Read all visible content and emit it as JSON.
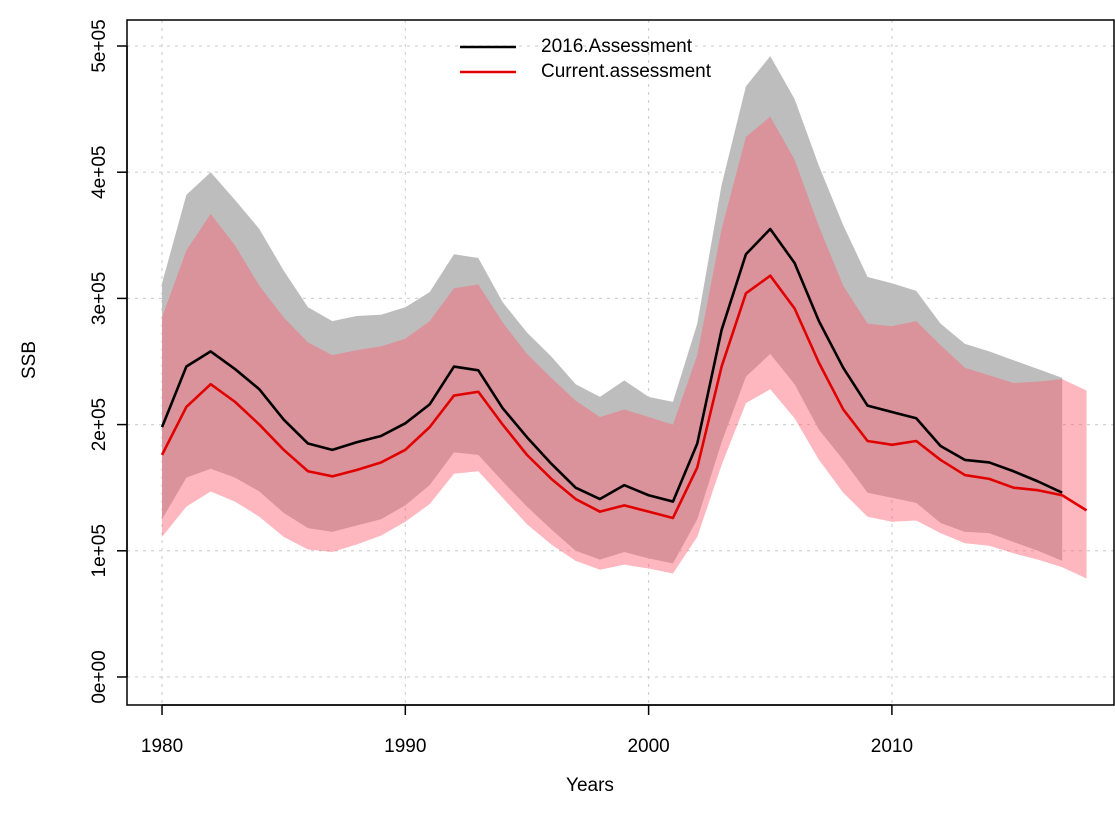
{
  "chart_data": {
    "type": "line",
    "xlabel": "Years",
    "ylabel": "SSB",
    "x": [
      1980,
      1981,
      1982,
      1983,
      1984,
      1985,
      1986,
      1987,
      1988,
      1989,
      1990,
      1991,
      1992,
      1993,
      1994,
      1995,
      1996,
      1997,
      1998,
      1999,
      2000,
      2001,
      2002,
      2003,
      2004,
      2005,
      2006,
      2007,
      2008,
      2009,
      2010,
      2011,
      2012,
      2013,
      2014,
      2015,
      2016,
      2017,
      2018
    ],
    "series": [
      {
        "name": "2016.Assessment",
        "color": "#000000",
        "band_color": "#bdbdbd",
        "values": [
          198000,
          246000,
          258000,
          244000,
          228000,
          204000,
          185000,
          180000,
          186000,
          191000,
          201000,
          216000,
          246000,
          243000,
          213000,
          190000,
          169000,
          150000,
          141000,
          152000,
          144000,
          139000,
          185000,
          275000,
          335000,
          355000,
          328000,
          282000,
          245000,
          215000,
          210000,
          205000,
          183000,
          172000,
          170000,
          163000,
          155000,
          146000,
          null
        ],
        "upper": [
          312000,
          382000,
          400000,
          378000,
          355000,
          322000,
          293000,
          282000,
          286000,
          287000,
          293000,
          305000,
          335000,
          332000,
          297000,
          273000,
          254000,
          232000,
          222000,
          235000,
          222000,
          218000,
          280000,
          390000,
          468000,
          492000,
          458000,
          405000,
          358000,
          317000,
          312000,
          306000,
          280000,
          264000,
          258000,
          251000,
          244000,
          237000,
          null
        ],
        "lower": [
          125000,
          158000,
          165000,
          158000,
          147000,
          130000,
          118000,
          115000,
          120000,
          125000,
          136000,
          152000,
          178000,
          176000,
          155000,
          135000,
          117000,
          100000,
          93000,
          99000,
          94000,
          90000,
          125000,
          186000,
          238000,
          256000,
          232000,
          196000,
          172000,
          146000,
          142000,
          138000,
          122000,
          115000,
          114000,
          107000,
          100000,
          92000,
          null
        ]
      },
      {
        "name": "Current.assessment",
        "color": "#e00000",
        "band_color": "#ff6070",
        "values": [
          176000,
          214000,
          232000,
          218000,
          200000,
          180000,
          163000,
          159000,
          164000,
          170000,
          180000,
          198000,
          223000,
          226000,
          200000,
          176000,
          157000,
          141000,
          131000,
          136000,
          131000,
          126000,
          166000,
          246000,
          304000,
          318000,
          292000,
          249000,
          212000,
          187000,
          184000,
          187000,
          172000,
          160000,
          157000,
          150000,
          148000,
          144000,
          132000
        ],
        "upper": [
          285000,
          338000,
          367000,
          342000,
          310000,
          285000,
          265000,
          255000,
          259000,
          262000,
          268000,
          282000,
          308000,
          311000,
          281000,
          256000,
          237000,
          219000,
          206000,
          212000,
          206000,
          200000,
          255000,
          355000,
          428000,
          444000,
          410000,
          357000,
          310000,
          280000,
          278000,
          282000,
          263000,
          245000,
          239000,
          233000,
          234000,
          236000,
          227000
        ],
        "lower": [
          111000,
          135000,
          147000,
          139000,
          127000,
          111000,
          101000,
          99000,
          105000,
          112000,
          123000,
          137000,
          161000,
          163000,
          142000,
          121000,
          105000,
          92000,
          85000,
          89000,
          86000,
          82000,
          111000,
          168000,
          217000,
          228000,
          205000,
          172000,
          146000,
          127000,
          123000,
          124000,
          114000,
          106000,
          104000,
          98000,
          93000,
          87000,
          78000
        ]
      }
    ],
    "xlim": [
      1978.56,
      2019.17
    ],
    "ylim": [
      -22200,
      520600
    ],
    "xticks": [
      1980,
      1990,
      2000,
      2010
    ],
    "yticks": [
      {
        "value": 0,
        "label": "0e+00"
      },
      {
        "value": 100000,
        "label": "1e+05"
      },
      {
        "value": 200000,
        "label": "2e+05"
      },
      {
        "value": 300000,
        "label": "3e+05"
      },
      {
        "value": 400000,
        "label": "4e+05"
      },
      {
        "value": 500000,
        "label": "5e+05"
      }
    ],
    "grid": true,
    "legend": "top"
  }
}
